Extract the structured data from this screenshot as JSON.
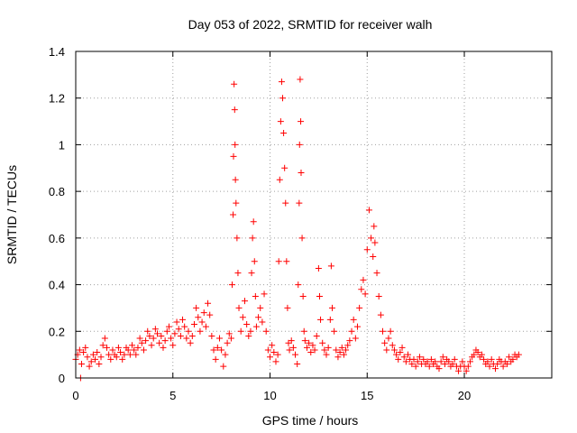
{
  "chart_data": {
    "type": "scatter",
    "title": "Day 053 of 2022, SRMTID for receiver walh",
    "xlabel": "GPS time / hours",
    "ylabel": "SRMTID / TECUs",
    "xlim": [
      0,
      24.5
    ],
    "ylim": [
      0,
      1.4
    ],
    "xticks": [
      0,
      5,
      10,
      15,
      20
    ],
    "yticks": [
      0,
      0.2,
      0.4,
      0.6,
      0.8,
      1,
      1.2,
      1.4
    ],
    "xtick_labels": [
      "0",
      "5",
      "10",
      "15",
      "20"
    ],
    "ytick_labels": [
      "0",
      "0.2",
      "0.4",
      "0.6",
      "0.8",
      "1",
      "1.2",
      "1.4"
    ],
    "grid": true,
    "marker": "+",
    "color": "#ff0000",
    "series": [
      {
        "name": "SRMTID",
        "points": [
          [
            0.0,
            0.08
          ],
          [
            0.1,
            0.1
          ],
          [
            0.2,
            0.12
          ],
          [
            0.25,
            0.0
          ],
          [
            0.3,
            0.06
          ],
          [
            0.4,
            0.11
          ],
          [
            0.5,
            0.13
          ],
          [
            0.6,
            0.09
          ],
          [
            0.7,
            0.05
          ],
          [
            0.8,
            0.07
          ],
          [
            0.9,
            0.1
          ],
          [
            1.0,
            0.08
          ],
          [
            1.1,
            0.11
          ],
          [
            1.2,
            0.06
          ],
          [
            1.3,
            0.09
          ],
          [
            1.4,
            0.14
          ],
          [
            1.5,
            0.17
          ],
          [
            1.6,
            0.13
          ],
          [
            1.7,
            0.1
          ],
          [
            1.8,
            0.08
          ],
          [
            1.9,
            0.12
          ],
          [
            2.0,
            0.1
          ],
          [
            2.1,
            0.09
          ],
          [
            2.2,
            0.13
          ],
          [
            2.3,
            0.11
          ],
          [
            2.4,
            0.08
          ],
          [
            2.5,
            0.1
          ],
          [
            2.6,
            0.13
          ],
          [
            2.7,
            0.12
          ],
          [
            2.8,
            0.1
          ],
          [
            2.9,
            0.14
          ],
          [
            3.0,
            0.12
          ],
          [
            3.1,
            0.1
          ],
          [
            3.2,
            0.13
          ],
          [
            3.3,
            0.17
          ],
          [
            3.4,
            0.15
          ],
          [
            3.5,
            0.12
          ],
          [
            3.6,
            0.16
          ],
          [
            3.7,
            0.2
          ],
          [
            3.8,
            0.18
          ],
          [
            3.9,
            0.14
          ],
          [
            4.0,
            0.17
          ],
          [
            4.1,
            0.21
          ],
          [
            4.2,
            0.19
          ],
          [
            4.3,
            0.15
          ],
          [
            4.4,
            0.18
          ],
          [
            4.5,
            0.13
          ],
          [
            4.6,
            0.16
          ],
          [
            4.7,
            0.2
          ],
          [
            4.8,
            0.22
          ],
          [
            4.9,
            0.17
          ],
          [
            5.0,
            0.14
          ],
          [
            5.1,
            0.19
          ],
          [
            5.2,
            0.24
          ],
          [
            5.3,
            0.21
          ],
          [
            5.4,
            0.18
          ],
          [
            5.5,
            0.25
          ],
          [
            5.6,
            0.22
          ],
          [
            5.7,
            0.17
          ],
          [
            5.8,
            0.2
          ],
          [
            5.9,
            0.15
          ],
          [
            6.0,
            0.18
          ],
          [
            6.1,
            0.23
          ],
          [
            6.2,
            0.3
          ],
          [
            6.3,
            0.26
          ],
          [
            6.4,
            0.2
          ],
          [
            6.5,
            0.24
          ],
          [
            6.6,
            0.28
          ],
          [
            6.7,
            0.22
          ],
          [
            6.8,
            0.32
          ],
          [
            6.9,
            0.27
          ],
          [
            7.0,
            0.18
          ],
          [
            7.1,
            0.12
          ],
          [
            7.2,
            0.08
          ],
          [
            7.3,
            0.13
          ],
          [
            7.4,
            0.17
          ],
          [
            7.5,
            0.12
          ],
          [
            7.6,
            0.05
          ],
          [
            7.7,
            0.1
          ],
          [
            7.8,
            0.15
          ],
          [
            7.9,
            0.19
          ],
          [
            8.0,
            0.17
          ],
          [
            8.05,
            0.4
          ],
          [
            8.1,
            0.7
          ],
          [
            8.12,
            0.95
          ],
          [
            8.15,
            1.26
          ],
          [
            8.18,
            1.15
          ],
          [
            8.2,
            1.0
          ],
          [
            8.22,
            0.85
          ],
          [
            8.25,
            0.75
          ],
          [
            8.3,
            0.6
          ],
          [
            8.35,
            0.45
          ],
          [
            8.4,
            0.3
          ],
          [
            8.5,
            0.2
          ],
          [
            8.6,
            0.26
          ],
          [
            8.7,
            0.33
          ],
          [
            8.8,
            0.23
          ],
          [
            8.9,
            0.18
          ],
          [
            9.0,
            0.2
          ],
          [
            9.05,
            0.45
          ],
          [
            9.1,
            0.6
          ],
          [
            9.15,
            0.67
          ],
          [
            9.2,
            0.5
          ],
          [
            9.25,
            0.35
          ],
          [
            9.3,
            0.22
          ],
          [
            9.4,
            0.26
          ],
          [
            9.5,
            0.3
          ],
          [
            9.6,
            0.24
          ],
          [
            9.7,
            0.36
          ],
          [
            9.8,
            0.2
          ],
          [
            9.9,
            0.12
          ],
          [
            10.0,
            0.09
          ],
          [
            10.1,
            0.14
          ],
          [
            10.2,
            0.11
          ],
          [
            10.3,
            0.07
          ],
          [
            10.4,
            0.1
          ],
          [
            10.45,
            0.5
          ],
          [
            10.5,
            0.85
          ],
          [
            10.55,
            1.1
          ],
          [
            10.6,
            1.27
          ],
          [
            10.65,
            1.2
          ],
          [
            10.7,
            1.05
          ],
          [
            10.75,
            0.9
          ],
          [
            10.8,
            0.75
          ],
          [
            10.85,
            0.5
          ],
          [
            10.9,
            0.3
          ],
          [
            10.95,
            0.15
          ],
          [
            11.0,
            0.12
          ],
          [
            11.1,
            0.16
          ],
          [
            11.2,
            0.13
          ],
          [
            11.3,
            0.1
          ],
          [
            11.4,
            0.06
          ],
          [
            11.45,
            0.4
          ],
          [
            11.5,
            0.75
          ],
          [
            11.52,
            1.0
          ],
          [
            11.55,
            1.28
          ],
          [
            11.58,
            1.1
          ],
          [
            11.6,
            0.88
          ],
          [
            11.65,
            0.6
          ],
          [
            11.7,
            0.35
          ],
          [
            11.75,
            0.2
          ],
          [
            11.8,
            0.16
          ],
          [
            11.9,
            0.13
          ],
          [
            12.0,
            0.15
          ],
          [
            12.1,
            0.11
          ],
          [
            12.2,
            0.14
          ],
          [
            12.3,
            0.12
          ],
          [
            12.4,
            0.18
          ],
          [
            12.5,
            0.47
          ],
          [
            12.55,
            0.35
          ],
          [
            12.6,
            0.25
          ],
          [
            12.7,
            0.15
          ],
          [
            12.8,
            0.12
          ],
          [
            12.9,
            0.1
          ],
          [
            13.0,
            0.13
          ],
          [
            13.1,
            0.25
          ],
          [
            13.15,
            0.48
          ],
          [
            13.2,
            0.3
          ],
          [
            13.3,
            0.2
          ],
          [
            13.4,
            0.12
          ],
          [
            13.5,
            0.09
          ],
          [
            13.6,
            0.11
          ],
          [
            13.7,
            0.13
          ],
          [
            13.8,
            0.1
          ],
          [
            13.9,
            0.12
          ],
          [
            14.0,
            0.14
          ],
          [
            14.1,
            0.16
          ],
          [
            14.2,
            0.2
          ],
          [
            14.3,
            0.25
          ],
          [
            14.4,
            0.17
          ],
          [
            14.5,
            0.22
          ],
          [
            14.6,
            0.3
          ],
          [
            14.7,
            0.38
          ],
          [
            14.8,
            0.42
          ],
          [
            14.9,
            0.36
          ],
          [
            15.0,
            0.55
          ],
          [
            15.1,
            0.72
          ],
          [
            15.2,
            0.6
          ],
          [
            15.3,
            0.52
          ],
          [
            15.35,
            0.65
          ],
          [
            15.4,
            0.58
          ],
          [
            15.5,
            0.45
          ],
          [
            15.6,
            0.35
          ],
          [
            15.7,
            0.27
          ],
          [
            15.8,
            0.2
          ],
          [
            15.9,
            0.15
          ],
          [
            16.0,
            0.12
          ],
          [
            16.1,
            0.17
          ],
          [
            16.2,
            0.2
          ],
          [
            16.3,
            0.14
          ],
          [
            16.4,
            0.12
          ],
          [
            16.5,
            0.1
          ],
          [
            16.6,
            0.08
          ],
          [
            16.7,
            0.11
          ],
          [
            16.8,
            0.13
          ],
          [
            16.9,
            0.09
          ],
          [
            17.0,
            0.07
          ],
          [
            17.1,
            0.1
          ],
          [
            17.2,
            0.08
          ],
          [
            17.3,
            0.06
          ],
          [
            17.4,
            0.08
          ],
          [
            17.5,
            0.05
          ],
          [
            17.6,
            0.07
          ],
          [
            17.7,
            0.09
          ],
          [
            17.8,
            0.06
          ],
          [
            17.9,
            0.08
          ],
          [
            18.0,
            0.06
          ],
          [
            18.1,
            0.07
          ],
          [
            18.2,
            0.05
          ],
          [
            18.3,
            0.08
          ],
          [
            18.4,
            0.06
          ],
          [
            18.5,
            0.07
          ],
          [
            18.6,
            0.05
          ],
          [
            18.7,
            0.04
          ],
          [
            18.8,
            0.07
          ],
          [
            18.9,
            0.09
          ],
          [
            19.0,
            0.06
          ],
          [
            19.1,
            0.08
          ],
          [
            19.2,
            0.07
          ],
          [
            19.3,
            0.05
          ],
          [
            19.4,
            0.06
          ],
          [
            19.5,
            0.08
          ],
          [
            19.6,
            0.05
          ],
          [
            19.7,
            0.03
          ],
          [
            19.8,
            0.05
          ],
          [
            19.9,
            0.07
          ],
          [
            20.0,
            0.05
          ],
          [
            20.1,
            0.03
          ],
          [
            20.2,
            0.05
          ],
          [
            20.3,
            0.07
          ],
          [
            20.4,
            0.09
          ],
          [
            20.5,
            0.1
          ],
          [
            20.6,
            0.12
          ],
          [
            20.7,
            0.11
          ],
          [
            20.8,
            0.09
          ],
          [
            20.9,
            0.1
          ],
          [
            21.0,
            0.08
          ],
          [
            21.1,
            0.06
          ],
          [
            21.2,
            0.07
          ],
          [
            21.3,
            0.05
          ],
          [
            21.4,
            0.08
          ],
          [
            21.5,
            0.06
          ],
          [
            21.6,
            0.04
          ],
          [
            21.7,
            0.06
          ],
          [
            21.8,
            0.08
          ],
          [
            21.9,
            0.07
          ],
          [
            22.0,
            0.05
          ],
          [
            22.1,
            0.07
          ],
          [
            22.2,
            0.06
          ],
          [
            22.3,
            0.09
          ],
          [
            22.4,
            0.07
          ],
          [
            22.5,
            0.08
          ],
          [
            22.6,
            0.1
          ],
          [
            22.7,
            0.09
          ],
          [
            22.8,
            0.1
          ]
        ]
      }
    ]
  }
}
